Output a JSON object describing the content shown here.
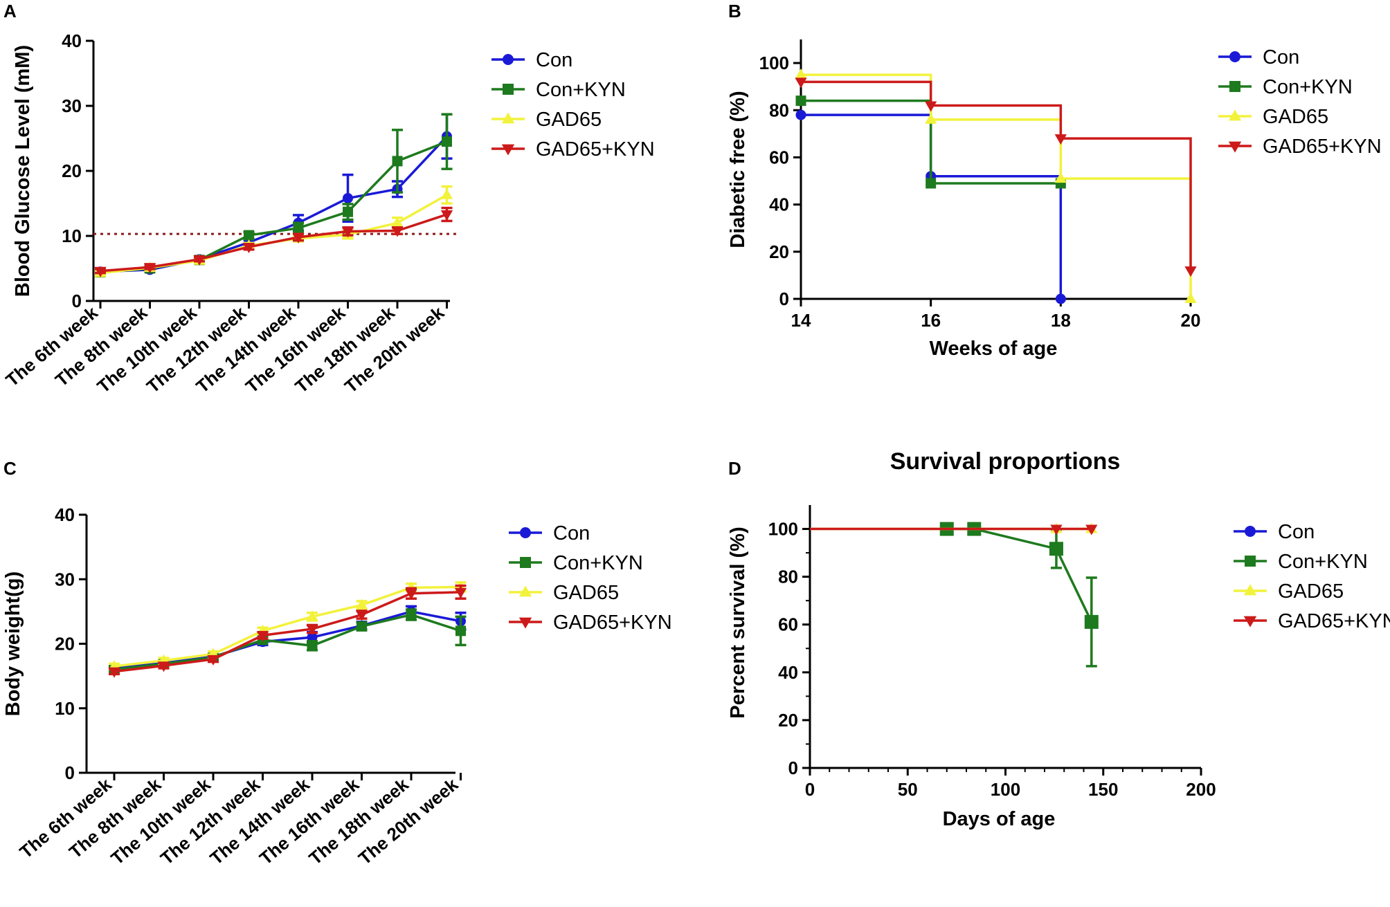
{
  "colors": {
    "Con": "#1a1ad6",
    "Con+KYN": "#1e7a1e",
    "GAD65": "#f2f23c",
    "GAD65+KYN": "#cc1a1a",
    "threshold": "#8b1a1a"
  },
  "legend": [
    "Con",
    "Con+KYN",
    "GAD65",
    "GAD65+KYN"
  ],
  "chart_data": [
    {
      "id": "A",
      "panel": "A",
      "type": "line",
      "title": "",
      "xlabel": "",
      "ylabel": "Blood Glucose Level (mM)",
      "ylim": [
        0,
        40
      ],
      "yticks": [
        "0",
        "10",
        "20",
        "30",
        "40"
      ],
      "categories": [
        "The 6th week",
        "The 8th week",
        "The 10th week",
        "The 12th week",
        "The 14th week",
        "The 16th week",
        "The 18th week",
        "The 20th week"
      ],
      "threshold": 10.3,
      "series": [
        {
          "name": "Con",
          "values": [
            4.5,
            4.8,
            6.4,
            9.0,
            12.0,
            15.8,
            17.2,
            25.3
          ],
          "errors": [
            0.3,
            0.3,
            0.4,
            0.4,
            1.2,
            3.6,
            1.2,
            3.4
          ]
        },
        {
          "name": "Con+KYN",
          "values": [
            4.4,
            5.0,
            6.3,
            10.1,
            11.2,
            13.7,
            21.5,
            24.5
          ],
          "errors": [
            0.3,
            0.3,
            0.4,
            0.5,
            0.8,
            1.2,
            4.8,
            4.2
          ]
        },
        {
          "name": "GAD65",
          "values": [
            4.3,
            5.1,
            6.2,
            8.5,
            9.6,
            10.2,
            12.0,
            16.3
          ],
          "errors": [
            0.3,
            0.3,
            0.3,
            0.4,
            0.4,
            0.6,
            0.8,
            1.3
          ]
        },
        {
          "name": "GAD65+KYN",
          "values": [
            4.6,
            5.2,
            6.4,
            8.3,
            9.8,
            10.7,
            10.8,
            13.3
          ],
          "errors": [
            0.3,
            0.3,
            0.3,
            0.4,
            0.5,
            0.6,
            0.5,
            1.0
          ]
        }
      ]
    },
    {
      "id": "B",
      "panel": "B",
      "type": "line",
      "step": true,
      "title": "",
      "xlabel": "Weeks of age",
      "ylabel": "Diabetic free (%)",
      "xlim": [
        14,
        20
      ],
      "xticks": [
        14,
        16,
        18,
        20
      ],
      "ylim": [
        0,
        110
      ],
      "yticks": [
        0,
        20,
        40,
        60,
        80,
        100
      ],
      "series": [
        {
          "name": "Con",
          "x": [
            14,
            16,
            18
          ],
          "values": [
            78,
            52,
            0
          ]
        },
        {
          "name": "Con+KYN",
          "x": [
            14,
            16,
            18
          ],
          "values": [
            84,
            49,
            49
          ]
        },
        {
          "name": "GAD65",
          "x": [
            14,
            16,
            18,
            20
          ],
          "values": [
            95,
            76,
            51,
            0
          ]
        },
        {
          "name": "GAD65+KYN",
          "x": [
            14,
            16,
            18,
            20
          ],
          "values": [
            92,
            82,
            68,
            12
          ]
        }
      ]
    },
    {
      "id": "C",
      "panel": "C",
      "type": "line",
      "title": "",
      "xlabel": "",
      "ylabel": "Body weight(g)",
      "ylim": [
        0,
        40
      ],
      "yticks": [
        "0",
        "10",
        "20",
        "30",
        "40"
      ],
      "categories": [
        "The 6th week",
        "The 8th week",
        "The 10th week",
        "The 12th week",
        "The 14th week",
        "The 16th week",
        "The 18th week",
        "The 20th week"
      ],
      "series": [
        {
          "name": "Con",
          "values": [
            16.2,
            17.0,
            18.0,
            20.3,
            21.0,
            22.8,
            25.0,
            23.5
          ],
          "errors": [
            0.4,
            0.4,
            0.4,
            0.5,
            0.8,
            0.6,
            0.8,
            1.3
          ]
        },
        {
          "name": "Con+KYN",
          "values": [
            16.0,
            16.9,
            17.9,
            20.6,
            19.7,
            22.7,
            24.5,
            22.0
          ],
          "errors": [
            0.4,
            0.4,
            0.4,
            0.5,
            0.7,
            0.6,
            0.8,
            2.2
          ]
        },
        {
          "name": "GAD65",
          "values": [
            16.5,
            17.4,
            18.4,
            22.0,
            24.2,
            26.0,
            28.7,
            28.8
          ],
          "errors": [
            0.4,
            0.4,
            0.4,
            0.5,
            0.6,
            0.6,
            0.6,
            0.7
          ]
        },
        {
          "name": "GAD65+KYN",
          "values": [
            15.7,
            16.6,
            17.6,
            21.3,
            22.3,
            24.5,
            27.8,
            28.0
          ],
          "errors": [
            0.4,
            0.4,
            0.4,
            0.5,
            0.6,
            0.6,
            0.8,
            1.0
          ]
        }
      ]
    },
    {
      "id": "D",
      "panel": "D",
      "type": "line",
      "title": "Survival proportions",
      "xlabel": "Days of age",
      "ylabel": "Percent survival (%)",
      "xlim": [
        0,
        200
      ],
      "xticks": [
        0,
        50,
        100,
        150,
        200
      ],
      "ylim": [
        0,
        110
      ],
      "yticks": [
        0,
        20,
        40,
        60,
        80,
        100
      ],
      "series": [
        {
          "name": "Con",
          "x": [
            70,
            84
          ],
          "values": [
            100,
            100
          ]
        },
        {
          "name": "Con+KYN",
          "x": [
            70,
            84,
            126,
            144
          ],
          "values": [
            100,
            100,
            91.7,
            61.1
          ],
          "errors": [
            0,
            0,
            8,
            18.5
          ]
        },
        {
          "name": "GAD65",
          "x": [
            0,
            126,
            144
          ],
          "values": [
            100,
            100,
            100
          ]
        },
        {
          "name": "GAD65+KYN",
          "x": [
            0,
            126,
            144
          ],
          "values": [
            100,
            100,
            100
          ]
        }
      ]
    }
  ]
}
